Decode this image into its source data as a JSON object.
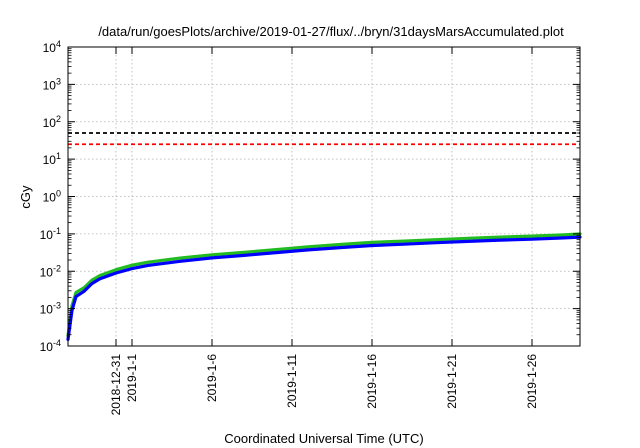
{
  "chart_data": {
    "type": "line",
    "title": "/data/run/goesPlots/archive/2019-01-27/flux/../bryn/31daysMarsAccumulated.plot",
    "xlabel": "Coordinated Universal Time (UTC)",
    "ylabel": "cGy",
    "yscale": "log",
    "ylim": [
      0.0001,
      10000
    ],
    "xlim": [
      "2018-12-28",
      "2019-01-29"
    ],
    "grid": true,
    "y_ticks": [
      {
        "value": 0.0001,
        "base": "10",
        "exp": "-4"
      },
      {
        "value": 0.001,
        "base": "10",
        "exp": "-3"
      },
      {
        "value": 0.01,
        "base": "10",
        "exp": "-2"
      },
      {
        "value": 0.1,
        "base": "10",
        "exp": "-1"
      },
      {
        "value": 1,
        "base": "10",
        "exp": "0"
      },
      {
        "value": 10,
        "base": "10",
        "exp": "1"
      },
      {
        "value": 100,
        "base": "10",
        "exp": "2"
      },
      {
        "value": 1000,
        "base": "10",
        "exp": "3"
      },
      {
        "value": 10000,
        "base": "10",
        "exp": "4"
      }
    ],
    "x_ticks": [
      {
        "date": "2018-12-31",
        "label": "2018-12-31"
      },
      {
        "date": "2019-01-01",
        "label": "2019-1-1"
      },
      {
        "date": "2019-01-06",
        "label": "2019-1-6"
      },
      {
        "date": "2019-01-11",
        "label": "2019-1-11"
      },
      {
        "date": "2019-01-16",
        "label": "2019-1-16"
      },
      {
        "date": "2019-01-21",
        "label": "2019-1-21"
      },
      {
        "date": "2019-01-26",
        "label": "2019-1-26"
      }
    ],
    "reference_lines": [
      {
        "y": 50,
        "color": "#000000",
        "style": "dashed"
      },
      {
        "y": 25,
        "color": "#ff0000",
        "style": "dashed"
      }
    ],
    "series": [
      {
        "color": "#22bb22",
        "x": [
          "2018-12-28",
          "2018-12-28T06:00",
          "2018-12-28T12:00",
          "2018-12-29",
          "2018-12-29T12:00",
          "2018-12-30",
          "2018-12-31",
          "2019-01-01",
          "2019-01-02",
          "2019-01-04",
          "2019-01-06",
          "2019-01-08",
          "2019-01-10",
          "2019-01-12",
          "2019-01-14",
          "2019-01-16",
          "2019-01-18",
          "2019-01-20",
          "2019-01-22",
          "2019-01-24",
          "2019-01-26",
          "2019-01-28",
          "2019-01-29"
        ],
        "y": [
          0.00019,
          0.0012,
          0.0027,
          0.0036,
          0.0058,
          0.0077,
          0.011,
          0.0145,
          0.0175,
          0.0225,
          0.0275,
          0.032,
          0.038,
          0.045,
          0.052,
          0.059,
          0.064,
          0.07,
          0.076,
          0.082,
          0.087,
          0.094,
          0.099
        ]
      },
      {
        "color": "#0000ff",
        "x": [
          "2018-12-28",
          "2018-12-28T06:00",
          "2018-12-28T12:00",
          "2018-12-29",
          "2018-12-29T12:00",
          "2018-12-30",
          "2018-12-31",
          "2019-01-01",
          "2019-01-02",
          "2019-01-04",
          "2019-01-06",
          "2019-01-08",
          "2019-01-10",
          "2019-01-12",
          "2019-01-14",
          "2019-01-16",
          "2019-01-18",
          "2019-01-20",
          "2019-01-22",
          "2019-01-24",
          "2019-01-26",
          "2019-01-28",
          "2019-01-29"
        ],
        "y": [
          0.00015,
          0.0009,
          0.0021,
          0.0029,
          0.0047,
          0.0063,
          0.009,
          0.0118,
          0.0143,
          0.0185,
          0.0227,
          0.0265,
          0.0315,
          0.0372,
          0.043,
          0.0488,
          0.053,
          0.058,
          0.063,
          0.068,
          0.0722,
          0.078,
          0.082
        ]
      }
    ]
  }
}
